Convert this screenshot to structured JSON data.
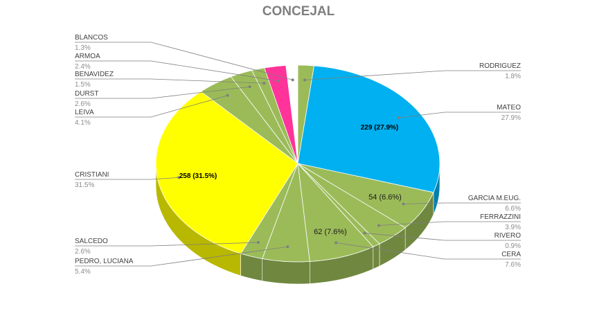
{
  "chart_data": {
    "type": "pie",
    "title": "CONCEJAL",
    "series": [
      {
        "name": "RODRIGUEZ",
        "value": 15,
        "percent_label": "1.8%",
        "color": "#9bbb59"
      },
      {
        "name": "MATEO",
        "value": 229,
        "percent_label": "27.9%",
        "color": "#00b0f0",
        "data_label": "229 (27.9%)"
      },
      {
        "name": "GARCIA M.EUG.",
        "value": 54,
        "percent_label": "6.6%",
        "color": "#9bbb59",
        "data_label": "54 (6.6%)"
      },
      {
        "name": "FERRAZZINI",
        "value": 32,
        "percent_label": "3.9%",
        "color": "#9bbb59"
      },
      {
        "name": "RIVERO",
        "value": 7,
        "percent_label": "0.9%",
        "color": "#9bbb59"
      },
      {
        "name": "CERA",
        "value": 62,
        "percent_label": "7.6%",
        "color": "#9bbb59",
        "data_label": "62 (7.6%)"
      },
      {
        "name": "PEDRO, LUCIANA",
        "value": 44,
        "percent_label": "5.4%",
        "color": "#9bbb59"
      },
      {
        "name": "SALCEDO",
        "value": 21,
        "percent_label": "2.6%",
        "color": "#9bbb59"
      },
      {
        "name": "CRISTIANI",
        "value": 258,
        "percent_label": "31.5%",
        "color": "#ffff00",
        "data_label": "258 (31.5%)"
      },
      {
        "name": "LEIVA",
        "value": 34,
        "percent_label": "4.1%",
        "color": "#9bbb59"
      },
      {
        "name": "DURST",
        "value": 21,
        "percent_label": "2.6%",
        "color": "#9bbb59"
      },
      {
        "name": "BENAVIDEZ",
        "value": 12,
        "percent_label": "1.5%",
        "color": "#9bbb59"
      },
      {
        "name": "ARMOA",
        "value": 20,
        "percent_label": "2.4%",
        "color": "#ff3399"
      },
      {
        "name": "BLANCOS",
        "value": 11,
        "percent_label": "1.3%",
        "color": "#ffffff"
      }
    ],
    "style": "3d-pie",
    "legend": "none"
  }
}
